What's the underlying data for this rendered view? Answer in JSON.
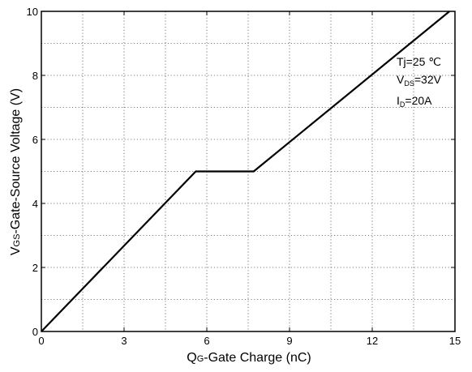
{
  "chart_data": {
    "type": "line",
    "xlabel": {
      "main": "Q",
      "sub": "G",
      "rest": "-Gate Charge (nC)"
    },
    "ylabel": {
      "main": "V",
      "sub": "GS",
      "rest": "-Gate-Source Voltage (V)"
    },
    "xlim": [
      0,
      15
    ],
    "ylim": [
      0,
      10
    ],
    "xticks": [
      0,
      3,
      6,
      9,
      12,
      15
    ],
    "yticks": [
      0,
      2,
      4,
      6,
      8,
      10
    ],
    "grid": true,
    "grid_style": "dotted",
    "series": [
      {
        "color": "#000000",
        "x": [
          0,
          5.6,
          7.7,
          14.8
        ],
        "y": [
          0,
          5.0,
          5.0,
          10.0
        ]
      }
    ],
    "annotations": {
      "tj": "Tj=25 ℃",
      "vds": {
        "main": "V",
        "sub": "DS",
        "rest": "=32V"
      },
      "id": {
        "main": "I",
        "sub": "D",
        "rest": "=20A"
      }
    }
  }
}
